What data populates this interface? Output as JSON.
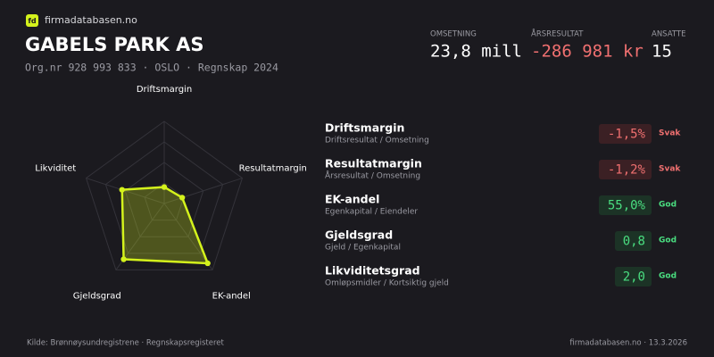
{
  "brand": "firmadatabasen.no",
  "logo": "fd",
  "company": "GABELS PARK AS",
  "meta": "Org.nr 928 993 833 · OSLO · Regnskap 2024",
  "stats": [
    {
      "label": "OMSETNING",
      "value": "23,8 mill"
    },
    {
      "label": "ÅRSRESULTAT",
      "value": "-286 981 kr"
    },
    {
      "label": "ANSATTE",
      "value": "15"
    }
  ],
  "chart_data": {
    "type": "radar",
    "categories": [
      "Driftsmargin",
      "Resultatmargin",
      "EK-andel",
      "Gjeldsgrad",
      "Likviditet"
    ],
    "values": [
      20,
      23,
      90,
      84,
      54
    ],
    "color": "#d4f21c",
    "rlim": [
      0,
      100
    ],
    "rticks": [
      25,
      50,
      75,
      100
    ],
    "grid": true
  },
  "metrics": [
    {
      "title": "Driftsmargin",
      "subtitle": "Driftsresultat / Omsetning",
      "value": "-1,5%",
      "status": "Svak"
    },
    {
      "title": "Resultatmargin",
      "subtitle": "Årsresultat / Omsetning",
      "value": "-1,2%",
      "status": "Svak"
    },
    {
      "title": "EK-andel",
      "subtitle": "Egenkapital / Eiendeler",
      "value": "55,0%",
      "status": "God"
    },
    {
      "title": "Gjeldsgrad",
      "subtitle": "Gjeld / Egenkapital",
      "value": "0,8",
      "status": "God"
    },
    {
      "title": "Likviditetsgrad",
      "subtitle": "Omløpsmidler / Kortsiktig gjeld",
      "value": "2,0",
      "status": "God"
    }
  ],
  "footer": {
    "source": "Kilde: Brønnøysundregistrene · Regnskapsregisteret",
    "stamp": "firmadatabasen.no · 13.3.2026"
  }
}
